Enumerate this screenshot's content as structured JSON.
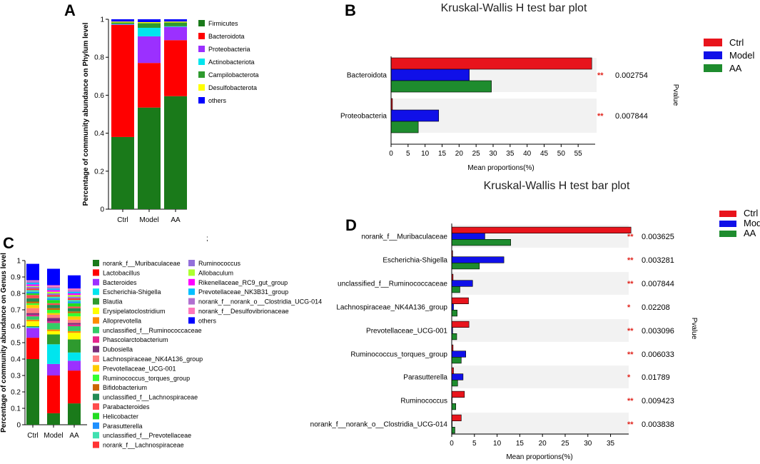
{
  "panels": {
    "A": "A",
    "B": "B",
    "C": "C",
    "D": "D",
    "stray_mark": ";"
  },
  "chart_data": [
    {
      "id": "A",
      "type": "bar",
      "stacked": true,
      "title": "",
      "xlabel": "",
      "ylabel": "Percentage of community abundance on Phylum level",
      "ylim": [
        0,
        1
      ],
      "yticks": [
        "0",
        "0.2",
        "0.4",
        "0.6",
        "0.8",
        "1"
      ],
      "categories": [
        "Ctrl",
        "Model",
        "AA"
      ],
      "series": [
        {
          "name": "Firmicutes",
          "color": "#1a7a1a",
          "values": [
            0.38,
            0.535,
            0.595
          ]
        },
        {
          "name": "Bacteroidota",
          "color": "#ff0000",
          "values": [
            0.59,
            0.235,
            0.295
          ]
        },
        {
          "name": "Proteobacteria",
          "color": "#9b30ff",
          "values": [
            0.003,
            0.14,
            0.07
          ]
        },
        {
          "name": "Actinobacteriota",
          "color": "#00e5ee",
          "values": [
            0.002,
            0.045,
            0.003
          ]
        },
        {
          "name": "Campilobacterota",
          "color": "#2e9a2e",
          "values": [
            0.008,
            0.025,
            0.02
          ]
        },
        {
          "name": "Desulfobacterota",
          "color": "#ffff00",
          "values": [
            0.005,
            0.005,
            0.005
          ]
        },
        {
          "name": "others",
          "color": "#0000ff",
          "values": [
            0.012,
            0.015,
            0.012
          ]
        }
      ]
    },
    {
      "id": "B",
      "type": "bar",
      "orientation": "horizontal",
      "title": "Kruskal-Wallis H test bar plot",
      "xlabel": "Mean proportions(%)",
      "ylabel": "Pvalue",
      "xlim": [
        0,
        60
      ],
      "xticks": [
        "0",
        "5",
        "10",
        "15",
        "20",
        "25",
        "30",
        "35",
        "40",
        "45",
        "50",
        "55"
      ],
      "categories": [
        "Bacteroidota",
        "Proteobacteria"
      ],
      "series": [
        {
          "name": "Ctrl",
          "color": "#e8141c",
          "values": [
            59,
            0.4
          ]
        },
        {
          "name": "Model",
          "color": "#1010e8",
          "values": [
            23,
            14
          ]
        },
        {
          "name": "AA",
          "color": "#1e8c2e",
          "values": [
            29.5,
            8
          ]
        }
      ],
      "significance": [
        "**",
        "**"
      ],
      "pvalues": [
        "0.002754",
        "0.007844"
      ]
    },
    {
      "id": "C",
      "type": "bar",
      "stacked": true,
      "title": "",
      "xlabel": "",
      "ylabel": "Percentage of community abundance on Genus level",
      "ylim": [
        0,
        1
      ],
      "yticks": [
        "0",
        "0.1",
        "0.2",
        "0.3",
        "0.4",
        "0.5",
        "0.6",
        "0.7",
        "0.8",
        "0.9",
        "1"
      ],
      "categories": [
        "Ctrl",
        "Model",
        "AA"
      ],
      "series": [
        {
          "name": "norank_f__Muribaculaceae",
          "color": "#1a7a1a",
          "values": [
            0.4,
            0.07,
            0.13
          ]
        },
        {
          "name": "Lactobacillus",
          "color": "#ff0000",
          "values": [
            0.13,
            0.23,
            0.2
          ]
        },
        {
          "name": "Bacteroides",
          "color": "#9b30ff",
          "values": [
            0.06,
            0.07,
            0.06
          ]
        },
        {
          "name": "Escherichia-Shigella",
          "color": "#00e5ee",
          "values": [
            0.005,
            0.12,
            0.05
          ]
        },
        {
          "name": "Blautia",
          "color": "#2e9a2e",
          "values": [
            0.005,
            0.06,
            0.08
          ]
        },
        {
          "name": "Erysipelatoclostridium",
          "color": "#ffff00",
          "values": [
            0.03,
            0.02,
            0.04
          ]
        },
        {
          "name": "Alloprevotella",
          "color": "#ff8c00",
          "values": [
            0.01,
            0.01,
            0.01
          ]
        },
        {
          "name": "unclassified_f__Ruminococcaceae",
          "color": "#33cc66",
          "values": [
            0.02,
            0.04,
            0.03
          ]
        },
        {
          "name": "Phascolarctobacterium",
          "color": "#e6268c",
          "values": [
            0.01,
            0.01,
            0.01
          ]
        },
        {
          "name": "Dubosiella",
          "color": "#7b2d7b",
          "values": [
            0.01,
            0.02,
            0.01
          ]
        },
        {
          "name": "Lachnospiraceae_NK4A136_group",
          "color": "#ff8080",
          "values": [
            0.03,
            0.02,
            0.02
          ]
        },
        {
          "name": "Prevotellaceae_UCG-001",
          "color": "#ffcc00",
          "values": [
            0.02,
            0.01,
            0.02
          ]
        },
        {
          "name": "Ruminococcus_torques_group",
          "color": "#33ff33",
          "values": [
            0.01,
            0.02,
            0.02
          ]
        },
        {
          "name": "Bifidobacterium",
          "color": "#cc6600",
          "values": [
            0.01,
            0.01,
            0.01
          ]
        },
        {
          "name": "unclassified_f__Lachnospiraceae",
          "color": "#228b55",
          "values": [
            0.02,
            0.02,
            0.02
          ]
        },
        {
          "name": "Parabacteroides",
          "color": "#ff4d4d",
          "values": [
            0.02,
            0.01,
            0.01
          ]
        },
        {
          "name": "Helicobacter",
          "color": "#22dd22",
          "values": [
            0.01,
            0.02,
            0.02
          ]
        },
        {
          "name": "Parasutterella",
          "color": "#1e90ff",
          "values": [
            0.01,
            0.01,
            0.01
          ]
        },
        {
          "name": "unclassified_f__Prevotellaceae",
          "color": "#40e0b0",
          "values": [
            0.01,
            0.01,
            0.01
          ]
        },
        {
          "name": "norank_f__Lachnospiraceae",
          "color": "#ff3333",
          "values": [
            0.01,
            0.01,
            0.01
          ]
        },
        {
          "name": "Ruminococcus",
          "color": "#9370db",
          "values": [
            0.01,
            0.01,
            0.01
          ]
        },
        {
          "name": "Allobaculum",
          "color": "#adff2f",
          "values": [
            0.005,
            0.01,
            0.01
          ]
        },
        {
          "name": "Rikenellaceae_RC9_gut_group",
          "color": "#ff00ff",
          "values": [
            0.01,
            0.01,
            0.01
          ]
        },
        {
          "name": "Prevotellaceae_NK3B31_group",
          "color": "#00bfff",
          "values": [
            0.01,
            0.01,
            0.01
          ]
        },
        {
          "name": "norank_f__norank_o__Clostridia_UCG-014",
          "color": "#b070d0",
          "values": [
            0.01,
            0.01,
            0.01
          ]
        },
        {
          "name": "norank_f__Desulfovibrionaceae",
          "color": "#ff77bb",
          "values": [
            0.005,
            0.01,
            0.01
          ]
        },
        {
          "name": "others",
          "color": "#0000ff",
          "values": [
            0.1,
            0.1,
            0.08
          ]
        }
      ]
    },
    {
      "id": "D",
      "type": "bar",
      "orientation": "horizontal",
      "title": "Kruskal-Wallis H test bar plot",
      "xlabel": "Mean proportions(%)",
      "ylabel": "Pvalue",
      "xlim": [
        0,
        39
      ],
      "xticks": [
        "0",
        "5",
        "10",
        "15",
        "20",
        "25",
        "30",
        "35"
      ],
      "categories": [
        "norank_f__Muribaculaceae",
        "Escherichia-Shigella",
        "unclassified_f__Ruminococcaceae",
        "Lachnospiraceae_NK4A136_group",
        "Prevotellaceae_UCG-001",
        "Ruminococcus_torques_group",
        "Parasutterella",
        "Ruminococcus",
        "norank_f__norank_o__Clostridia_UCG-014"
      ],
      "series": [
        {
          "name": "Ctrl",
          "color": "#e8141c",
          "values": [
            39.5,
            0.2,
            0.3,
            3.7,
            3.8,
            0.3,
            0.4,
            2.8,
            2.1
          ]
        },
        {
          "name": "Model",
          "color": "#1010e8",
          "values": [
            7.3,
            11.5,
            4.6,
            0.4,
            0.2,
            3.1,
            2.5,
            0.1,
            0.1
          ]
        },
        {
          "name": "AA",
          "color": "#1e8c2e",
          "values": [
            13.0,
            6.1,
            1.8,
            1.2,
            1.1,
            2.1,
            1.3,
            0.9,
            0.7
          ]
        }
      ],
      "significance": [
        "**",
        "**",
        "**",
        "*",
        "**",
        "**",
        "*",
        "**",
        "**"
      ],
      "pvalues": [
        "0.003625",
        "0.003281",
        "0.007844",
        "0.02208",
        "0.003096",
        "0.006033",
        "0.01789",
        "0.009423",
        "0.003838"
      ]
    }
  ]
}
